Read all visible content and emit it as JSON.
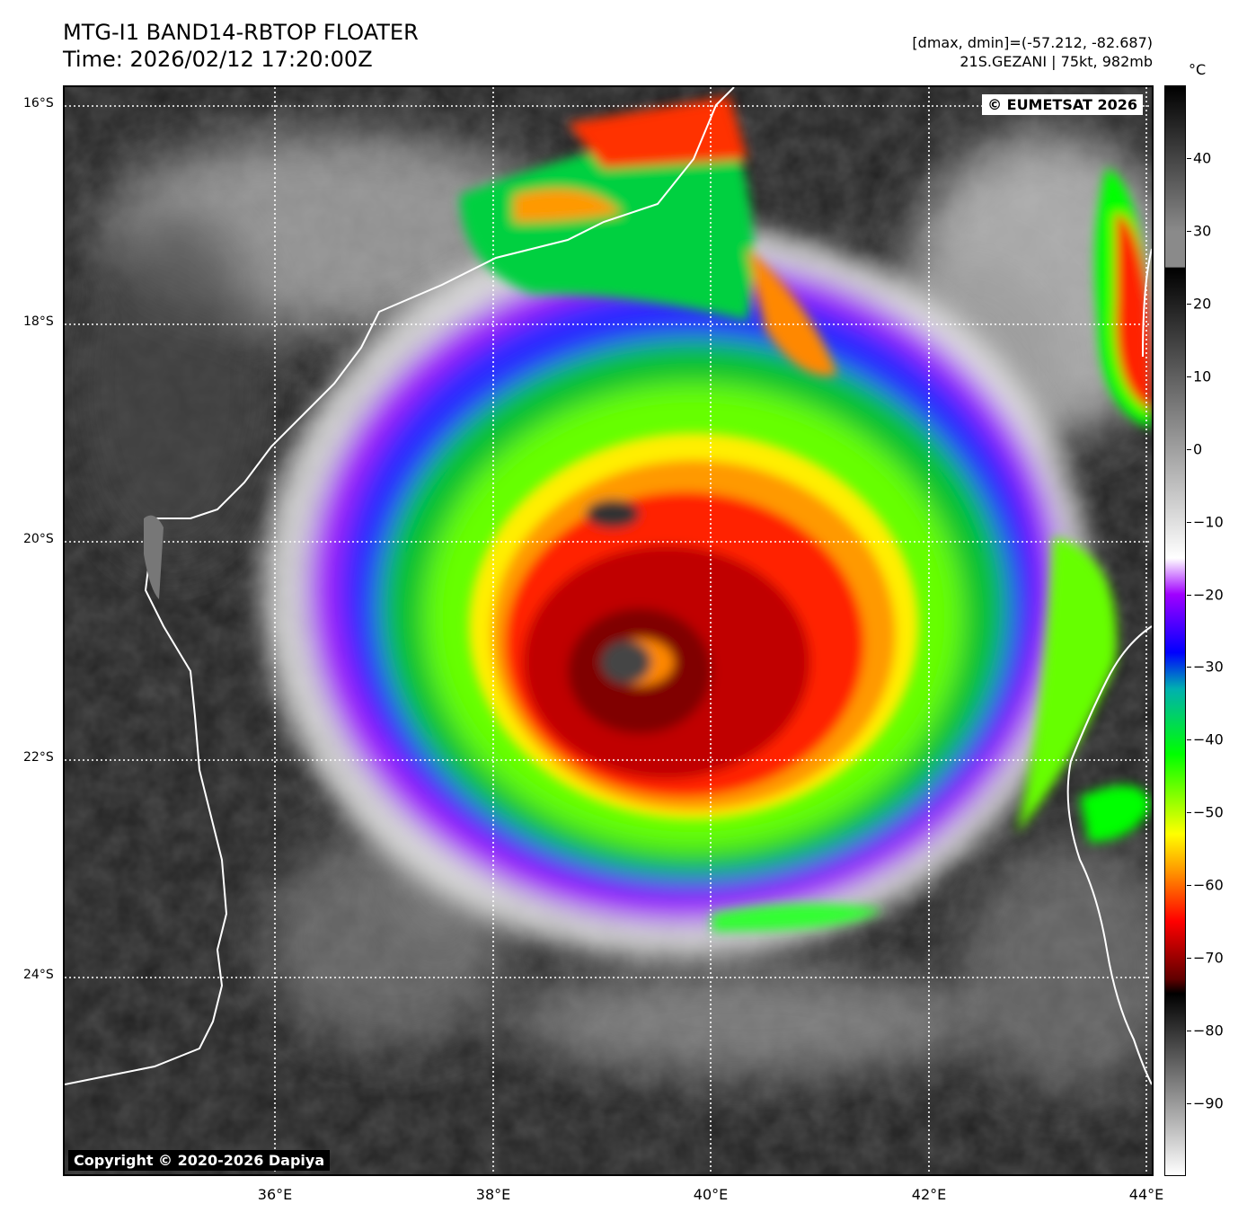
{
  "header": {
    "title": "MTG-I1 BAND14-RBTOP FLOATER",
    "time": "Time: 2026/02/12 17:20:00Z",
    "range": "[dmax, dmin]=(-57.212, -82.687)",
    "storm": "21S.GEZANI | 75kt, 982mb"
  },
  "map": {
    "eumetsat_credit": "© EUMETSAT 2026",
    "dapiya_credit": "Copyright © 2020-2026 Dapiya",
    "lat_labels": [
      "16°S",
      "18°S",
      "20°S",
      "22°S",
      "24°S"
    ],
    "lon_labels": [
      "36°E",
      "38°E",
      "40°E",
      "42°E",
      "44°E"
    ],
    "extent": {
      "lon_min": 34.0,
      "lon_max": 44.05,
      "lat_north": -15.85,
      "lat_south": -25.85
    },
    "storm_center": {
      "lon": 39.6,
      "lat": -20.8
    },
    "gridline_color": "#ffffff",
    "coastline_color": "#ffffff"
  },
  "colorbar": {
    "unit": "°C",
    "range": [
      -100,
      50
    ],
    "labels": [
      "40",
      "30",
      "20",
      "10",
      "0",
      "−10",
      "−20",
      "−30",
      "−40",
      "−50",
      "−60",
      "−70",
      "−80",
      "−90"
    ],
    "values": [
      40,
      30,
      20,
      10,
      0,
      -10,
      -20,
      -30,
      -40,
      -50,
      -60,
      -70,
      -80,
      -90
    ],
    "colors": {
      "warm_top": "#000000",
      "gray_30": "#8a8a8a",
      "break_25": "#000000",
      "white_minus15": "#ffffff",
      "purple_minus20": "#a000ff",
      "blue_minus28": "#0000ff",
      "cyan_minus33": "#00b0b0",
      "green_minus42": "#00ff00",
      "yellow_minus53": "#ffff00",
      "orange_minus58": "#ff9900",
      "red_minus65": "#ff0000",
      "darkred_minus73": "#600000",
      "black_minus75": "#000000",
      "cold_bottom": "#ffffff"
    }
  }
}
